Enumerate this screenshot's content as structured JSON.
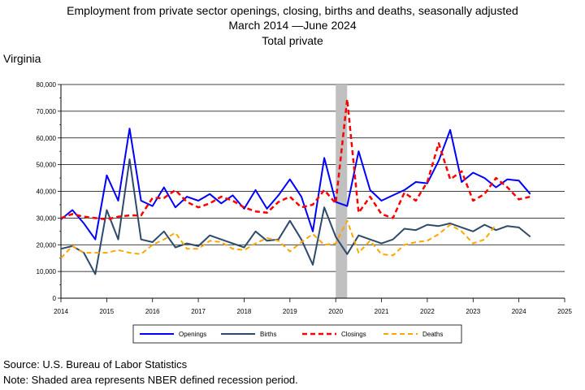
{
  "header": {
    "title_line1": "Employment from private sector openings, closing, births and deaths, seasonally adjusted",
    "title_line2": "March 2014 —June 2024",
    "title_line3": "Total private",
    "state": "Virginia"
  },
  "footer": {
    "source": "Source: U.S. Bureau of Labor Statistics",
    "note": "Note: Shaded area represents NBER defined recession period."
  },
  "chart_data": {
    "type": "line",
    "title": "Employment from private sector openings, closing, births and deaths, seasonally adjusted",
    "xlabel": "",
    "ylabel": "",
    "xlim": [
      2014,
      2025
    ],
    "ylim": [
      0,
      80000
    ],
    "x_ticks": [
      "2014",
      "2015",
      "2016",
      "2017",
      "2018",
      "2019",
      "2020",
      "2021",
      "2022",
      "2023",
      "2024",
      "2025"
    ],
    "y_ticks": [
      "0",
      "10,000",
      "20,000",
      "30,000",
      "40,000",
      "50,000",
      "60,000",
      "70,000",
      "80,000"
    ],
    "grid": "horizontal",
    "recession": [
      2020.0,
      2020.25
    ],
    "legend_position": "bottom",
    "x": [
      2014.0,
      2014.25,
      2014.5,
      2014.75,
      2015.0,
      2015.25,
      2015.5,
      2015.75,
      2016.0,
      2016.25,
      2016.5,
      2016.75,
      2017.0,
      2017.25,
      2017.5,
      2017.75,
      2018.0,
      2018.25,
      2018.5,
      2018.75,
      2019.0,
      2019.25,
      2019.5,
      2019.75,
      2020.0,
      2020.25,
      2020.5,
      2020.75,
      2021.0,
      2021.25,
      2021.5,
      2021.75,
      2022.0,
      2022.25,
      2022.5,
      2022.75,
      2023.0,
      2023.25,
      2023.5,
      2023.75,
      2024.0,
      2024.25
    ],
    "series": [
      {
        "name": "Openings",
        "color": "#0000ff",
        "dash": "solid",
        "width": 2,
        "values": [
          29500,
          33000,
          28000,
          22000,
          46000,
          36500,
          63500,
          36500,
          34500,
          41500,
          34000,
          38000,
          36500,
          39000,
          35500,
          38500,
          33500,
          40500,
          33500,
          38500,
          44500,
          38000,
          25000,
          52500,
          36000,
          34500,
          55000,
          40500,
          36500,
          38500,
          40500,
          43500,
          43000,
          51500,
          63000,
          43500,
          47000,
          45000,
          41500,
          44500,
          44000,
          39000
        ]
      },
      {
        "name": "Births",
        "color": "#2e4a6b",
        "dash": "solid",
        "width": 2,
        "values": [
          18500,
          19500,
          17000,
          9000,
          33000,
          22000,
          52000,
          22000,
          21000,
          25000,
          19000,
          20500,
          19500,
          23500,
          22000,
          20500,
          19000,
          25000,
          21500,
          22000,
          29000,
          22000,
          12500,
          34000,
          23000,
          16500,
          23500,
          22000,
          20500,
          22000,
          26000,
          25500,
          27500,
          27000,
          28000,
          26500,
          25000,
          27500,
          25500,
          27000,
          26500,
          23000
        ]
      },
      {
        "name": "Closings",
        "color": "#ff0000",
        "dash": "dashed",
        "width": 2.5,
        "values": [
          30000,
          31500,
          30500,
          30000,
          29500,
          30500,
          31000,
          31000,
          37500,
          37500,
          40500,
          36000,
          34000,
          35500,
          38000,
          36500,
          34000,
          32500,
          32000,
          36000,
          38000,
          34000,
          35000,
          40500,
          35500,
          74500,
          32000,
          38000,
          31500,
          30000,
          39500,
          36500,
          43500,
          58000,
          44500,
          47500,
          36500,
          39000,
          45000,
          41500,
          37000,
          38000
        ]
      },
      {
        "name": "Deaths",
        "color": "#ffa500",
        "dash": "dashed",
        "width": 2,
        "values": [
          15000,
          19500,
          17000,
          17000,
          17000,
          18000,
          17000,
          16500,
          20000,
          22000,
          24500,
          18500,
          18500,
          21500,
          21000,
          18500,
          18000,
          20500,
          22500,
          21500,
          17500,
          21000,
          24000,
          20000,
          20500,
          29000,
          17000,
          21500,
          16500,
          16000,
          20000,
          21000,
          21500,
          24000,
          27500,
          25000,
          20500,
          22000,
          27500,
          null,
          null,
          null
        ]
      }
    ]
  }
}
